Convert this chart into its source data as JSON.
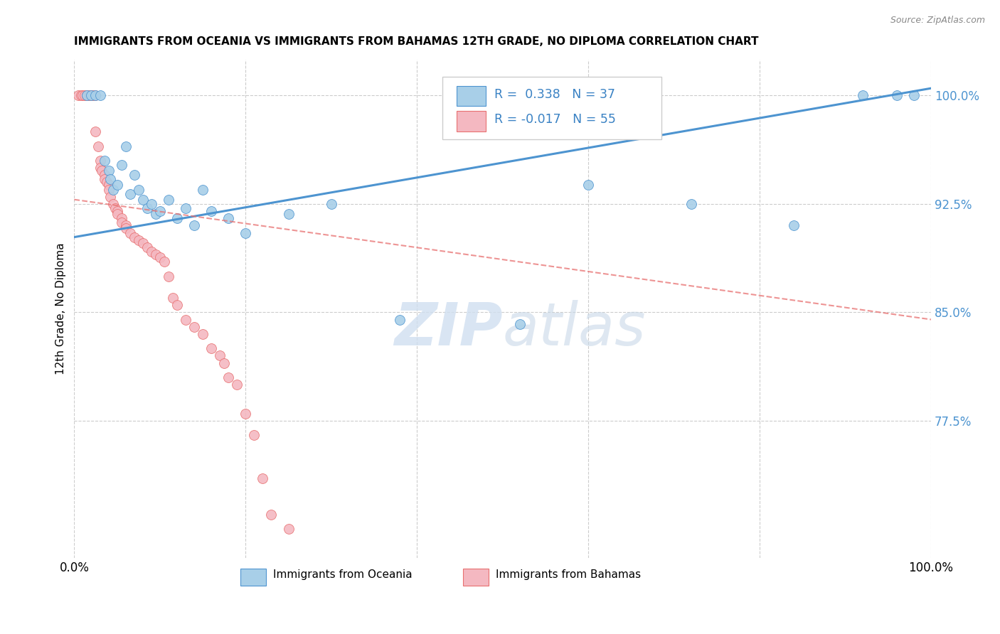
{
  "title": "IMMIGRANTS FROM OCEANIA VS IMMIGRANTS FROM BAHAMAS 12TH GRADE, NO DIPLOMA CORRELATION CHART",
  "source": "Source: ZipAtlas.com",
  "ylabel": "12th Grade, No Diploma",
  "yticks": [
    77.5,
    85.0,
    92.5,
    100.0
  ],
  "ytick_labels": [
    "77.5%",
    "85.0%",
    "92.5%",
    "100.0%"
  ],
  "xmin": 0.0,
  "xmax": 100.0,
  "ymin": 68.0,
  "ymax": 102.5,
  "R_oceania": 0.338,
  "N_oceania": 37,
  "R_bahamas": -0.017,
  "N_bahamas": 55,
  "color_oceania": "#a8cfe8",
  "color_bahamas": "#f4b8c1",
  "color_line_oceania": "#4d94d0",
  "color_line_bahamas": "#e87070",
  "legend_oceania": "Immigrants from Oceania",
  "legend_bahamas": "Immigrants from Bahamas",
  "watermark_zip": "ZIP",
  "watermark_atlas": "atlas",
  "oceania_x": [
    1.5,
    2.0,
    2.5,
    3.0,
    3.5,
    4.0,
    4.2,
    4.5,
    5.0,
    5.5,
    6.0,
    6.5,
    7.0,
    7.5,
    8.0,
    8.5,
    9.0,
    9.5,
    10.0,
    11.0,
    12.0,
    13.0,
    14.0,
    15.0,
    16.0,
    18.0,
    20.0,
    25.0,
    30.0,
    38.0,
    52.0,
    60.0,
    72.0,
    84.0,
    92.0,
    96.0,
    98.0
  ],
  "oceania_y": [
    100.0,
    100.0,
    100.0,
    100.0,
    95.5,
    94.8,
    94.2,
    93.5,
    93.8,
    95.2,
    96.5,
    93.2,
    94.5,
    93.5,
    92.8,
    92.2,
    92.5,
    91.8,
    92.0,
    92.8,
    91.5,
    92.2,
    91.0,
    93.5,
    92.0,
    91.5,
    90.5,
    91.8,
    92.5,
    84.5,
    84.2,
    93.8,
    92.5,
    91.0,
    100.0,
    100.0,
    100.0
  ],
  "bahamas_x": [
    0.5,
    0.8,
    1.0,
    1.2,
    1.5,
    1.5,
    1.8,
    2.0,
    2.0,
    2.2,
    2.5,
    2.5,
    2.8,
    3.0,
    3.0,
    3.2,
    3.5,
    3.5,
    3.8,
    4.0,
    4.0,
    4.2,
    4.5,
    4.8,
    5.0,
    5.0,
    5.5,
    5.5,
    6.0,
    6.0,
    6.5,
    7.0,
    7.5,
    8.0,
    8.5,
    9.0,
    9.5,
    10.0,
    10.5,
    11.0,
    11.5,
    12.0,
    13.0,
    14.0,
    15.0,
    16.0,
    17.0,
    17.5,
    18.0,
    19.0,
    20.0,
    21.0,
    22.0,
    23.0,
    25.0
  ],
  "bahamas_y": [
    100.0,
    100.0,
    100.0,
    100.0,
    100.0,
    100.0,
    100.0,
    100.0,
    100.0,
    100.0,
    100.0,
    97.5,
    96.5,
    95.5,
    95.0,
    94.8,
    94.5,
    94.2,
    94.0,
    93.8,
    93.5,
    93.0,
    92.5,
    92.2,
    92.0,
    91.8,
    91.5,
    91.2,
    91.0,
    90.8,
    90.5,
    90.2,
    90.0,
    89.8,
    89.5,
    89.2,
    89.0,
    88.8,
    88.5,
    87.5,
    86.0,
    85.5,
    84.5,
    84.0,
    83.5,
    82.5,
    82.0,
    81.5,
    80.5,
    80.0,
    78.0,
    76.5,
    73.5,
    71.0,
    70.0
  ],
  "oceania_line_x0": 0.0,
  "oceania_line_y0": 90.2,
  "oceania_line_x1": 100.0,
  "oceania_line_y1": 100.5,
  "bahamas_line_x0": 0.0,
  "bahamas_line_y0": 92.8,
  "bahamas_line_x1": 100.0,
  "bahamas_line_y1": 84.5
}
